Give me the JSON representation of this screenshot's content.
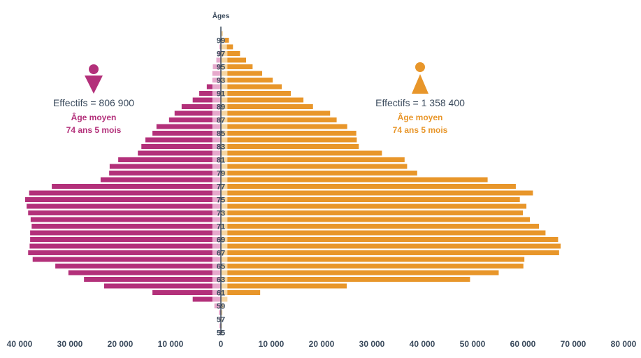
{
  "chart_data": {
    "type": "bar",
    "title": "",
    "axis_title": "Âges",
    "x_ticks": [
      "40 000",
      "30 000",
      "20 000",
      "10 000",
      "0",
      "10 000",
      "20 000",
      "30 000",
      "40 000",
      "50 000",
      "60 000",
      "70 000",
      "80 000"
    ],
    "age_tick_labels": [
      "99",
      "97",
      "95",
      "93",
      "91",
      "89",
      "87",
      "85",
      "83",
      "81",
      "79",
      "77",
      "75",
      "73",
      "71",
      "69",
      "67",
      "65",
      "63",
      "61",
      "59",
      "57",
      "55"
    ],
    "xlim_left": [
      0,
      40000
    ],
    "xlim_right": [
      0,
      80000
    ],
    "ages": [
      100,
      99,
      98,
      97,
      96,
      95,
      94,
      93,
      92,
      91,
      90,
      89,
      88,
      87,
      86,
      85,
      84,
      83,
      82,
      81,
      80,
      79,
      78,
      77,
      76,
      75,
      74,
      73,
      72,
      71,
      70,
      69,
      68,
      67,
      66,
      65,
      64,
      63,
      62,
      61,
      60,
      59,
      58,
      57,
      56,
      55
    ],
    "series": [
      {
        "side": "left",
        "color": "#b3307a",
        "values": [
          0,
          0,
          0,
          0,
          0,
          0,
          0,
          0,
          2800,
          4300,
          5600,
          7800,
          9200,
          10300,
          12800,
          13600,
          15000,
          15800,
          16500,
          20400,
          22100,
          22200,
          23900,
          33600,
          38100,
          38900,
          38600,
          38300,
          37800,
          37600,
          37900,
          37900,
          38000,
          38300,
          37400,
          32900,
          30300,
          27200,
          23200,
          13600,
          5600,
          0,
          0,
          0,
          0,
          0
        ]
      },
      {
        "side": "left-light",
        "color": "#e6a9cc",
        "values": [
          0,
          0,
          300,
          500,
          900,
          1600,
          1700,
          1700,
          1700,
          1700,
          1700,
          1700,
          1700,
          1700,
          1700,
          1700,
          1700,
          1700,
          1700,
          1700,
          1700,
          1700,
          1700,
          1700,
          1700,
          1700,
          1700,
          1700,
          1700,
          1700,
          1700,
          1700,
          1700,
          1700,
          1700,
          1700,
          1700,
          1700,
          1700,
          1700,
          1700,
          1300,
          400,
          300,
          300,
          200
        ]
      },
      {
        "side": "right",
        "color": "#e8962a",
        "values": [
          0,
          1600,
          2400,
          3800,
          5000,
          6300,
          8200,
          10300,
          12100,
          13900,
          16400,
          18300,
          21700,
          23000,
          25100,
          26900,
          27000,
          27400,
          32000,
          36500,
          37000,
          39000,
          53000,
          58600,
          62000,
          59400,
          60700,
          60000,
          61400,
          63200,
          64500,
          67000,
          67500,
          67200,
          60300,
          60100,
          55200,
          49500,
          25000,
          7800,
          0,
          0,
          0,
          0,
          0,
          0
        ]
      },
      {
        "side": "right-light",
        "color": "#f5d6a3",
        "values": [
          400,
          800,
          1200,
          1300,
          1300,
          1300,
          1300,
          1300,
          1300,
          1300,
          1300,
          1300,
          1300,
          1300,
          1300,
          1300,
          1300,
          1300,
          1300,
          1300,
          1300,
          1300,
          1300,
          1300,
          1300,
          1300,
          1300,
          1300,
          1300,
          1300,
          1300,
          1300,
          1300,
          1300,
          1300,
          1300,
          1300,
          1300,
          1300,
          1300,
          1300,
          500,
          300,
          200,
          200,
          200
        ]
      }
    ],
    "annotations": {
      "women": {
        "effectifs": "Effectifs = 806 900",
        "age_title": "Âge moyen",
        "age_value": "74 ans 5 mois",
        "color": "#b3307a",
        "icon": "woman-icon"
      },
      "men": {
        "effectifs": "Effectifs = 1 358 400",
        "age_title": "Âge moyen",
        "age_value": "74 ans 5 mois",
        "color": "#e8962a",
        "icon": "man-icon"
      }
    },
    "text_color": "#3a4a5c"
  }
}
